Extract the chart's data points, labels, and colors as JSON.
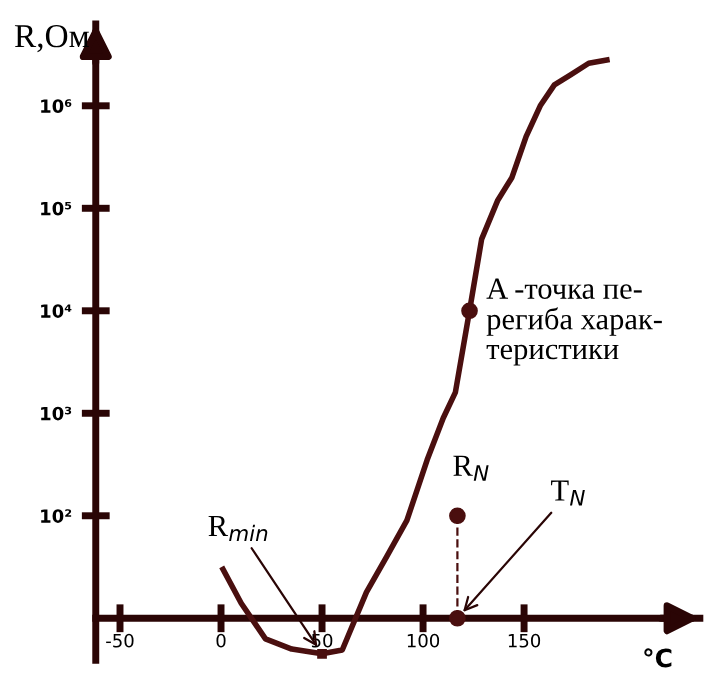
{
  "chart_data": {
    "type": "line",
    "xlabel": "°C",
    "ylabel": "R,Ом",
    "log": "y",
    "xlim": [
      -62,
      237
    ],
    "ylim": [
      3.9,
      6300000
    ],
    "xticks": [
      -50,
      0,
      50,
      100,
      150
    ],
    "yticks": [
      {
        "value": 100,
        "label": "10²"
      },
      {
        "value": 1000,
        "label": "10³"
      },
      {
        "value": 10000,
        "label": "10⁴"
      },
      {
        "value": 100000,
        "label": "10⁵"
      },
      {
        "value": 1000000,
        "label": "10⁶"
      }
    ],
    "grid": false,
    "series": [
      {
        "color": "#4a0f0f",
        "line_style": "solid",
        "x": [
          1,
          10,
          22,
          35,
          50,
          60,
          72,
          82,
          92,
          102,
          110,
          116,
          123,
          129,
          137,
          144,
          151,
          158,
          165,
          173,
          182,
          191
        ],
        "values": [
          30,
          14,
          6.3,
          5,
          4.5,
          4.9,
          18,
          40,
          90,
          350,
          900,
          1600,
          10000,
          50000,
          120000,
          200000,
          500000,
          1000000,
          1600000,
          2000000,
          2600000,
          2800000
        ]
      },
      {
        "color": "#4a0f0f",
        "line_style": "dashed",
        "marker": "circle",
        "x": [
          117,
          117
        ],
        "values": [
          10,
          100
        ]
      }
    ],
    "annotations": [
      {
        "text": "A -точка пе-\nрегиба харак-\nтеристики",
        "x": 123,
        "y": 10000
      },
      {
        "text": "R$_{min}$",
        "x": 50,
        "y": 4.5
      },
      {
        "text": "R$_{N}$",
        "x": 117,
        "y": 100
      },
      {
        "text": "T$_{N}$",
        "x": 117,
        "y": 10
      }
    ]
  }
}
